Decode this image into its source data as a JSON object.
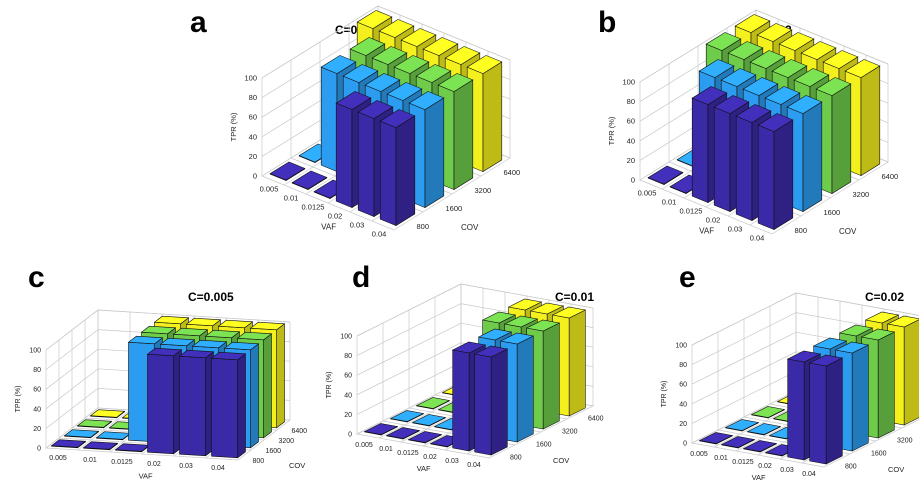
{
  "figure": {
    "y_ticks": [
      "0",
      "20",
      "40",
      "60",
      "80",
      "100"
    ],
    "ylabel": "TPR (%)",
    "xlabel": "VAF",
    "zlabel": "COV",
    "vaf_ticks": [
      "0.005",
      "0.01",
      "0.0125",
      "0.02",
      "0.03",
      "0.04"
    ],
    "cov_ticks": [
      "800",
      "1600",
      "3200",
      "6400"
    ],
    "series_colors": [
      "#3b2aa8",
      "#2b9cf0",
      "#6fcc4a",
      "#f4f01e"
    ]
  },
  "chart_data": [
    {
      "type": "bar3d",
      "panel_label": "a",
      "title": "C=0.001",
      "xlabel": "VAF",
      "ylabel": "TPR (%)",
      "zlabel": "COV",
      "ylim": [
        0,
        100
      ],
      "vaf": [
        0.005,
        0.01,
        0.0125,
        0.02,
        0.03,
        0.04
      ],
      "cov": [
        800,
        1600,
        3200,
        6400
      ],
      "values": [
        [
          0,
          0,
          0,
          100
        ],
        [
          0,
          100,
          100,
          100
        ],
        [
          0,
          100,
          100,
          100
        ],
        [
          100,
          100,
          100,
          100
        ],
        [
          100,
          100,
          100,
          100
        ],
        [
          100,
          100,
          100,
          100
        ]
      ]
    },
    {
      "type": "bar3d",
      "panel_label": "b",
      "title": "C=0.002",
      "xlabel": "VAF",
      "ylabel": "TPR (%)",
      "zlabel": "COV",
      "ylim": [
        0,
        100
      ],
      "vaf": [
        0.005,
        0.01,
        0.0125,
        0.02,
        0.03,
        0.04
      ],
      "cov": [
        800,
        1600,
        3200,
        6400
      ],
      "values": [
        [
          0,
          0,
          100,
          100
        ],
        [
          0,
          100,
          100,
          100
        ],
        [
          100,
          100,
          100,
          100
        ],
        [
          100,
          100,
          100,
          100
        ],
        [
          100,
          100,
          100,
          100
        ],
        [
          100,
          100,
          100,
          100
        ]
      ]
    },
    {
      "type": "bar3d",
      "panel_label": "c",
      "title": "C=0.005",
      "xlabel": "VAF",
      "ylabel": "TPR (%)",
      "zlabel": "COV",
      "ylim": [
        0,
        100
      ],
      "vaf": [
        0.005,
        0.01,
        0.0125,
        0.02,
        0.03,
        0.04
      ],
      "cov": [
        800,
        1600,
        3200,
        6400
      ],
      "values": [
        [
          0,
          0,
          0,
          0
        ],
        [
          0,
          0,
          0,
          0
        ],
        [
          0,
          100,
          100,
          100
        ],
        [
          100,
          100,
          100,
          100
        ],
        [
          100,
          100,
          100,
          100
        ],
        [
          100,
          100,
          100,
          100
        ]
      ]
    },
    {
      "type": "bar3d",
      "panel_label": "d",
      "title": "C=0.01",
      "xlabel": "VAF",
      "ylabel": "TPR (%)",
      "zlabel": "COV",
      "ylim": [
        0,
        100
      ],
      "vaf": [
        0.005,
        0.01,
        0.0125,
        0.02,
        0.03,
        0.04
      ],
      "cov": [
        800,
        1600,
        3200,
        6400
      ],
      "values": [
        [
          0,
          0,
          0,
          0
        ],
        [
          0,
          0,
          0,
          0
        ],
        [
          0,
          0,
          0,
          0
        ],
        [
          0,
          50,
          100,
          100
        ],
        [
          100,
          100,
          100,
          100
        ],
        [
          100,
          100,
          100,
          100
        ]
      ]
    },
    {
      "type": "bar3d",
      "panel_label": "e",
      "title": "C=0.02",
      "xlabel": "VAF",
      "ylabel": "TPR (%)",
      "zlabel": "COV",
      "ylim": [
        0,
        100
      ],
      "vaf": [
        0.005,
        0.01,
        0.0125,
        0.02,
        0.03,
        0.04
      ],
      "cov": [
        800,
        1600,
        3200,
        6400
      ],
      "values": [
        [
          0,
          0,
          0,
          0
        ],
        [
          0,
          0,
          0,
          0
        ],
        [
          0,
          0,
          0,
          0
        ],
        [
          0,
          0,
          0,
          0
        ],
        [
          100,
          100,
          100,
          100
        ],
        [
          100,
          100,
          100,
          100
        ]
      ]
    }
  ]
}
